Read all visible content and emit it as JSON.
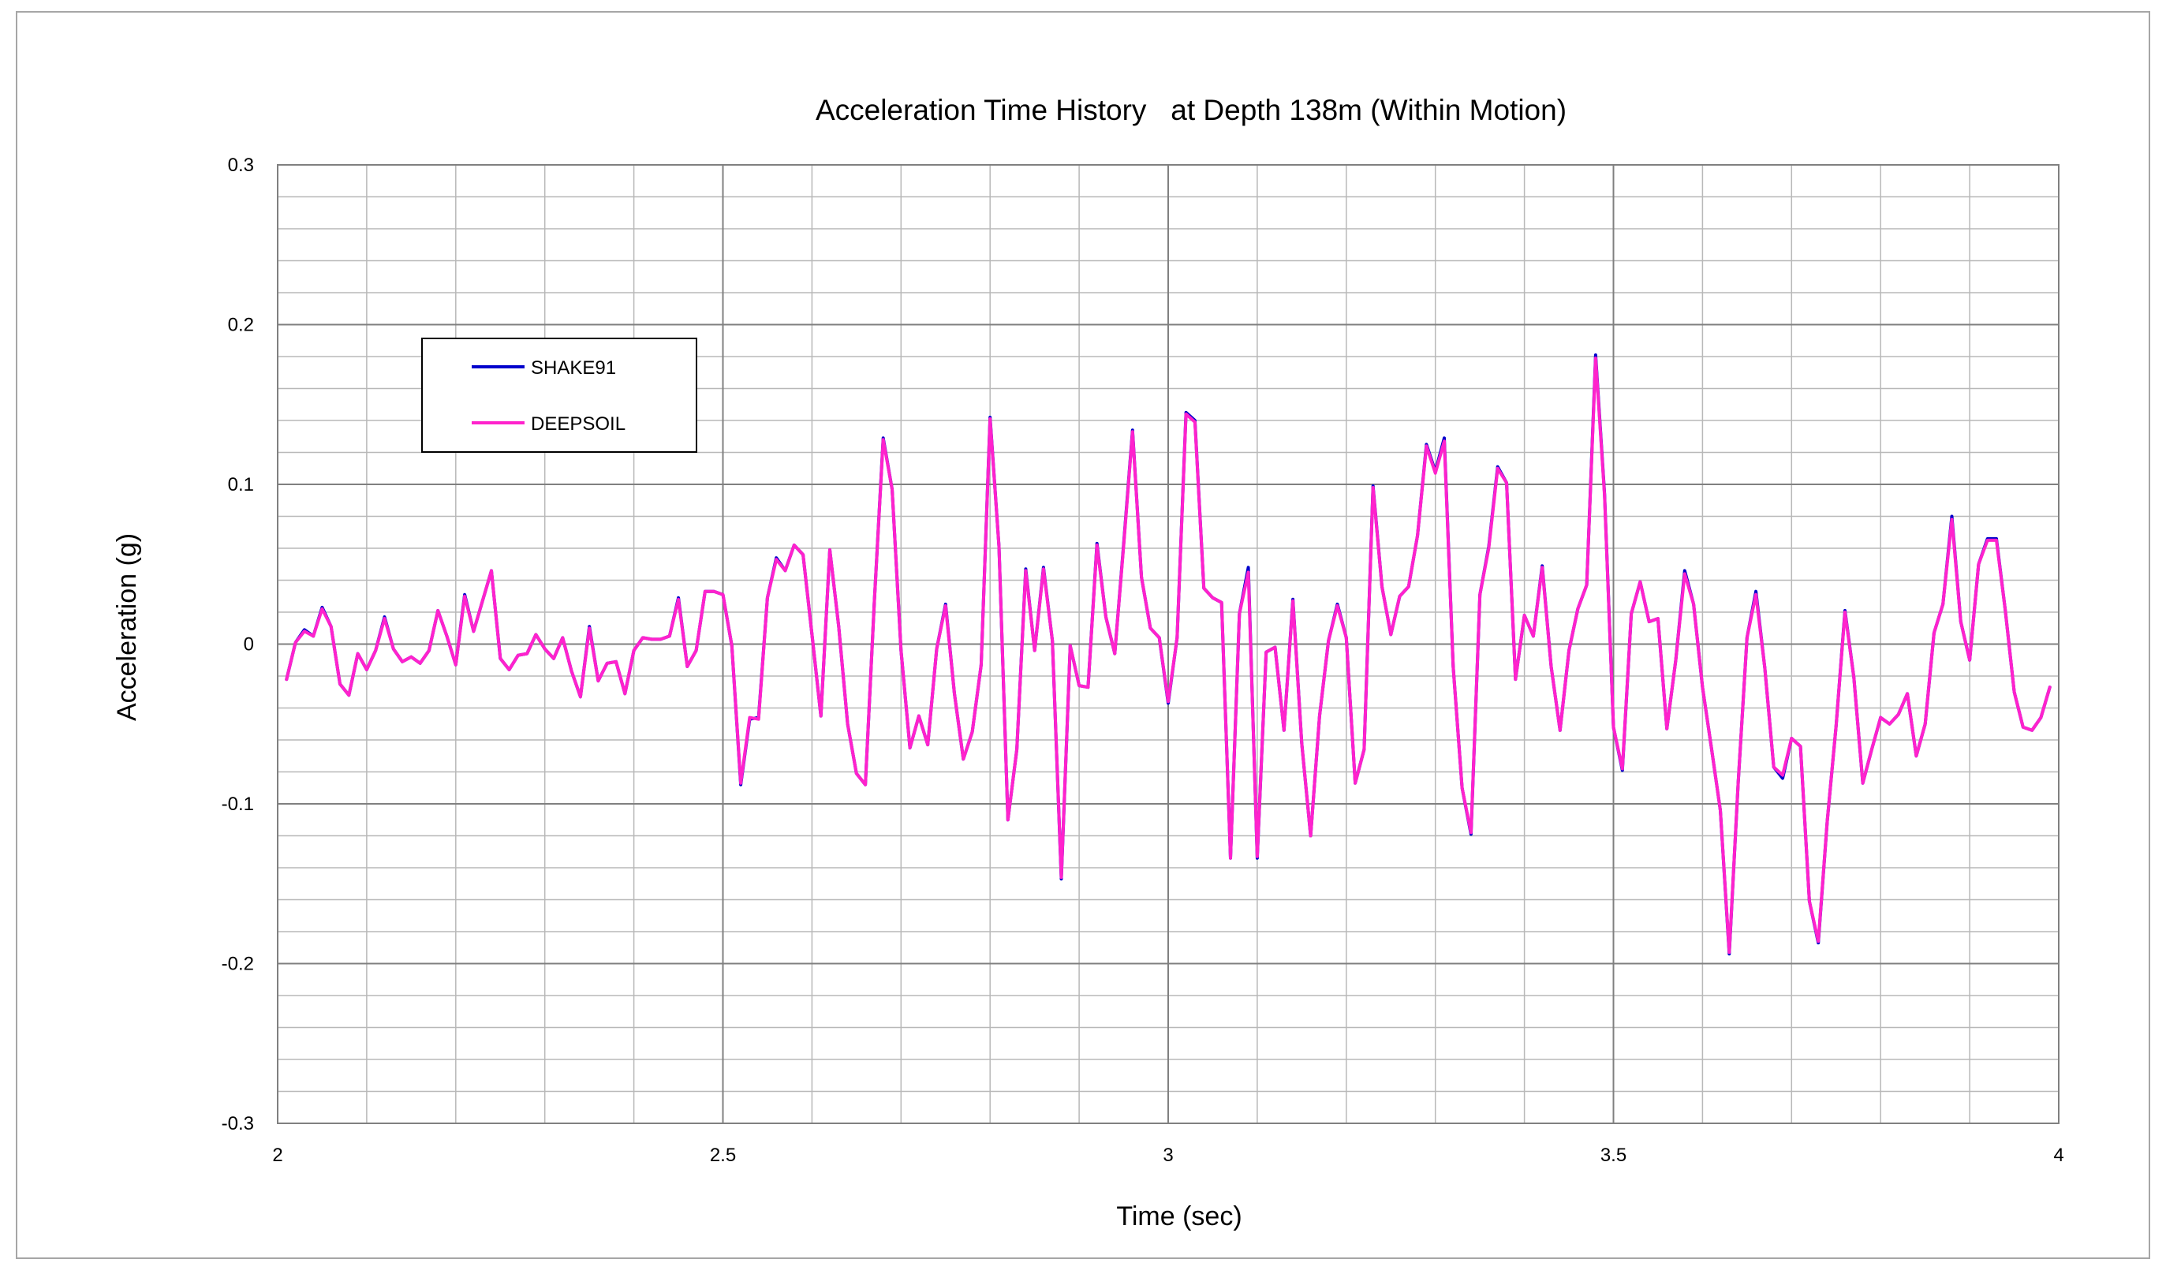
{
  "chart_data": {
    "type": "line",
    "title": "Acceleration Time History   at Depth 138m (Within Motion)",
    "xlabel": "Time (sec)",
    "ylabel": "Acceleration (g)",
    "xlim": [
      2,
      4
    ],
    "ylim": [
      -0.3,
      0.3
    ],
    "x_ticks": [
      2,
      2.5,
      3,
      3.5,
      4
    ],
    "x_tick_labels": [
      "2",
      "2.5",
      "3",
      "3.5",
      "4"
    ],
    "y_ticks": [
      -0.3,
      -0.2,
      -0.1,
      0,
      0.1,
      0.2,
      0.3
    ],
    "y_tick_labels": [
      "-0.3",
      "-0.2",
      "-0.1",
      "0",
      "0.1",
      "0.2",
      "0.3"
    ],
    "grid": true,
    "legend_position": "upper-left",
    "x": [
      2.01,
      2.02,
      2.03,
      2.04,
      2.05,
      2.06,
      2.07,
      2.08,
      2.09,
      2.1,
      2.11,
      2.12,
      2.13,
      2.14,
      2.15,
      2.16,
      2.17,
      2.18,
      2.19,
      2.2,
      2.21,
      2.22,
      2.23,
      2.24,
      2.25,
      2.26,
      2.27,
      2.28,
      2.29,
      2.3,
      2.31,
      2.32,
      2.33,
      2.34,
      2.35,
      2.36,
      2.37,
      2.38,
      2.39,
      2.4,
      2.41,
      2.42,
      2.43,
      2.44,
      2.45,
      2.46,
      2.47,
      2.48,
      2.49,
      2.5,
      2.51,
      2.52,
      2.53,
      2.54,
      2.55,
      2.56,
      2.57,
      2.58,
      2.59,
      2.6,
      2.61,
      2.62,
      2.63,
      2.64,
      2.65,
      2.66,
      2.67,
      2.68,
      2.69,
      2.7,
      2.71,
      2.72,
      2.73,
      2.74,
      2.75,
      2.76,
      2.77,
      2.78,
      2.79,
      2.8,
      2.81,
      2.82,
      2.83,
      2.84,
      2.85,
      2.86,
      2.87,
      2.88,
      2.89,
      2.9,
      2.91,
      2.92,
      2.93,
      2.94,
      2.95,
      2.96,
      2.97,
      2.98,
      2.99,
      3.0,
      3.01,
      3.02,
      3.03,
      3.04,
      3.05,
      3.06,
      3.07,
      3.08,
      3.09,
      3.1,
      3.11,
      3.12,
      3.13,
      3.14,
      3.15,
      3.16,
      3.17,
      3.18,
      3.19,
      3.2,
      3.21,
      3.22,
      3.23,
      3.24,
      3.25,
      3.26,
      3.27,
      3.28,
      3.29,
      3.3,
      3.31,
      3.32,
      3.33,
      3.34,
      3.35,
      3.36,
      3.37,
      3.38,
      3.39,
      3.4,
      3.41,
      3.42,
      3.43,
      3.44,
      3.45,
      3.46,
      3.47,
      3.48,
      3.49,
      3.5,
      3.51,
      3.52,
      3.53,
      3.54,
      3.55,
      3.56,
      3.57,
      3.58,
      3.59,
      3.6,
      3.61,
      3.62,
      3.63,
      3.64,
      3.65,
      3.66,
      3.67,
      3.68,
      3.69,
      3.7,
      3.71,
      3.72,
      3.73,
      3.74,
      3.75,
      3.76,
      3.77,
      3.78,
      3.79,
      3.8,
      3.81,
      3.82,
      3.83,
      3.84,
      3.85,
      3.86,
      3.87,
      3.88,
      3.89,
      3.9,
      3.91,
      3.92,
      3.93,
      3.94,
      3.95,
      3.96,
      3.97,
      3.98,
      3.99
    ],
    "series": [
      {
        "name": "SHAKE91",
        "color": "#0000cc",
        "values": [
          -0.022,
          0.001,
          0.009,
          0.005,
          0.023,
          0.011,
          -0.025,
          -0.032,
          -0.006,
          -0.016,
          -0.004,
          0.017,
          -0.003,
          -0.011,
          -0.008,
          -0.012,
          -0.004,
          0.021,
          0.005,
          -0.013,
          0.031,
          0.008,
          0.027,
          0.046,
          -0.009,
          -0.016,
          -0.007,
          -0.006,
          0.006,
          -0.003,
          -0.009,
          0.004,
          -0.017,
          -0.033,
          0.011,
          -0.023,
          -0.012,
          -0.011,
          -0.031,
          -0.004,
          0.004,
          0.003,
          0.003,
          0.005,
          0.029,
          -0.014,
          -0.004,
          0.033,
          0.033,
          0.031,
          -0.001,
          -0.088,
          -0.047,
          -0.046,
          0.029,
          0.054,
          0.046,
          0.062,
          0.056,
          0.006,
          -0.045,
          0.059,
          0.011,
          -0.05,
          -0.081,
          -0.088,
          0.026,
          0.129,
          0.097,
          -0.004,
          -0.065,
          -0.045,
          -0.063,
          -0.003,
          0.025,
          -0.031,
          -0.072,
          -0.055,
          -0.013,
          0.142,
          0.061,
          -0.11,
          -0.066,
          0.047,
          -0.004,
          0.048,
          0.002,
          -0.147,
          -0.001,
          -0.026,
          -0.027,
          0.063,
          0.017,
          -0.006,
          0.063,
          0.134,
          0.042,
          0.01,
          0.004,
          -0.037,
          0.004,
          0.145,
          0.14,
          0.035,
          0.029,
          0.026,
          -0.134,
          0.019,
          0.048,
          -0.134,
          -0.005,
          -0.002,
          -0.054,
          0.028,
          -0.062,
          -0.12,
          -0.045,
          0.002,
          0.025,
          0.004,
          -0.087,
          -0.066,
          0.099,
          0.036,
          0.006,
          0.03,
          0.036,
          0.068,
          0.125,
          0.108,
          0.129,
          -0.014,
          -0.09,
          -0.119,
          0.031,
          0.061,
          0.111,
          0.101,
          -0.022,
          0.018,
          0.005,
          0.049,
          -0.014,
          -0.054,
          -0.004,
          0.022,
          0.037,
          0.181,
          0.094,
          -0.052,
          -0.079,
          0.019,
          0.039,
          0.014,
          0.016,
          -0.053,
          -0.01,
          0.046,
          0.025,
          -0.027,
          -0.065,
          -0.104,
          -0.194,
          -0.087,
          0.004,
          0.033,
          -0.015,
          -0.077,
          -0.084,
          -0.059,
          -0.064,
          -0.161,
          -0.187,
          -0.111,
          -0.051,
          0.021,
          -0.021,
          -0.087,
          -0.066,
          -0.046,
          -0.05,
          -0.044,
          -0.031,
          -0.07,
          -0.05,
          0.007,
          0.025,
          0.08,
          0.014,
          -0.01,
          0.05,
          0.066,
          0.066,
          0.021,
          -0.03,
          -0.052,
          -0.054,
          -0.046,
          -0.027
        ]
      },
      {
        "name": "DEEPSOIL",
        "color": "#ff22cc",
        "values": [
          -0.022,
          0.001,
          0.008,
          0.005,
          0.022,
          0.011,
          -0.025,
          -0.032,
          -0.006,
          -0.016,
          -0.004,
          0.016,
          -0.003,
          -0.011,
          -0.008,
          -0.012,
          -0.004,
          0.021,
          0.005,
          -0.013,
          0.03,
          0.008,
          0.027,
          0.046,
          -0.009,
          -0.016,
          -0.007,
          -0.006,
          0.006,
          -0.003,
          -0.009,
          0.004,
          -0.017,
          -0.033,
          0.01,
          -0.023,
          -0.012,
          -0.011,
          -0.031,
          -0.004,
          0.004,
          0.003,
          0.003,
          0.005,
          0.028,
          -0.014,
          -0.004,
          0.033,
          0.033,
          0.031,
          -0.001,
          -0.087,
          -0.046,
          -0.047,
          0.029,
          0.053,
          0.046,
          0.062,
          0.056,
          0.006,
          -0.045,
          0.059,
          0.011,
          -0.05,
          -0.081,
          -0.088,
          0.026,
          0.128,
          0.097,
          -0.004,
          -0.065,
          -0.045,
          -0.063,
          -0.003,
          0.024,
          -0.031,
          -0.072,
          -0.055,
          -0.013,
          0.141,
          0.061,
          -0.11,
          -0.066,
          0.046,
          -0.004,
          0.047,
          0.002,
          -0.146,
          -0.001,
          -0.026,
          -0.027,
          0.062,
          0.017,
          -0.006,
          0.062,
          0.133,
          0.042,
          0.01,
          0.004,
          -0.036,
          0.004,
          0.144,
          0.139,
          0.035,
          0.029,
          0.026,
          -0.134,
          0.019,
          0.045,
          -0.133,
          -0.005,
          -0.002,
          -0.054,
          0.027,
          -0.062,
          -0.12,
          -0.045,
          0.002,
          0.024,
          0.004,
          -0.087,
          -0.066,
          0.098,
          0.036,
          0.006,
          0.03,
          0.036,
          0.068,
          0.124,
          0.107,
          0.127,
          -0.014,
          -0.09,
          -0.118,
          0.031,
          0.06,
          0.11,
          0.101,
          -0.022,
          0.018,
          0.005,
          0.048,
          -0.014,
          -0.054,
          -0.004,
          0.022,
          0.037,
          0.179,
          0.093,
          -0.052,
          -0.078,
          0.019,
          0.039,
          0.014,
          0.016,
          -0.053,
          -0.01,
          0.044,
          0.025,
          -0.027,
          -0.065,
          -0.104,
          -0.193,
          -0.087,
          0.004,
          0.031,
          -0.015,
          -0.077,
          -0.082,
          -0.059,
          -0.064,
          -0.161,
          -0.186,
          -0.111,
          -0.051,
          0.02,
          -0.021,
          -0.087,
          -0.066,
          -0.046,
          -0.05,
          -0.044,
          -0.031,
          -0.07,
          -0.05,
          0.007,
          0.025,
          0.078,
          0.014,
          -0.01,
          0.05,
          0.065,
          0.065,
          0.021,
          -0.03,
          -0.052,
          -0.054,
          -0.046,
          -0.027
        ]
      }
    ]
  }
}
